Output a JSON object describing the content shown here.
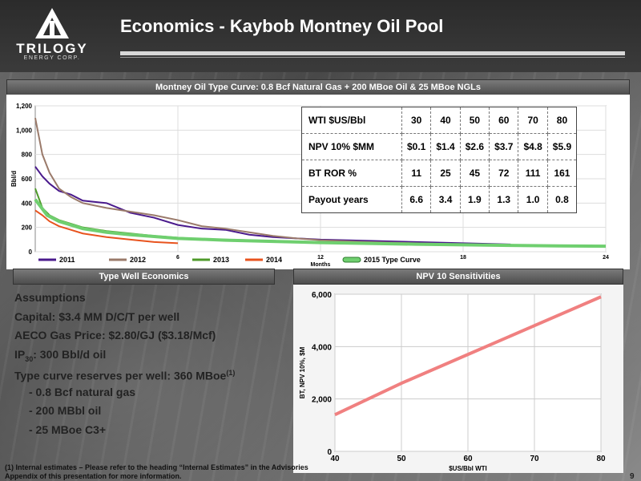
{
  "header": {
    "title": "Economics - Kaybob Montney Oil Pool",
    "logo_name": "TRILOGY",
    "logo_sub": "ENERGY CORP."
  },
  "type_curve_panel": {
    "title": "Montney Oil Type Curve: 0.8 Bcf Natural Gas + 200 MBoe Oil & 25 MBoe NGLs"
  },
  "chart_data": [
    {
      "type": "line",
      "ylabel": "Bbl/d",
      "xlabel": "Months",
      "xlim": [
        0,
        24
      ],
      "ylim": [
        0,
        1200
      ],
      "y_ticks": [
        "0",
        "200",
        "400",
        "600",
        "800",
        "1,000",
        "1,200"
      ],
      "x_ticks": [
        "6",
        "12",
        "18",
        "24"
      ],
      "legend_position": "bottom",
      "series": [
        {
          "name": "2011",
          "color": "#4a1a8c",
          "x": [
            0,
            0.3,
            0.6,
            1,
            1.5,
            2,
            3,
            4,
            5,
            6,
            7,
            8,
            9,
            10,
            11,
            12,
            14,
            16,
            18,
            20
          ],
          "y": [
            700,
            620,
            560,
            500,
            470,
            420,
            400,
            320,
            280,
            220,
            190,
            180,
            140,
            120,
            110,
            100,
            90,
            80,
            70,
            60
          ]
        },
        {
          "name": "2012",
          "color": "#9a7a6a",
          "x": [
            0,
            0.3,
            0.6,
            1,
            1.5,
            2,
            3,
            4,
            5,
            6,
            7,
            8,
            9,
            10,
            11,
            12,
            14,
            16,
            18
          ],
          "y": [
            1100,
            800,
            650,
            520,
            450,
            400,
            360,
            330,
            300,
            260,
            210,
            190,
            160,
            130,
            110,
            95,
            80,
            70,
            60
          ]
        },
        {
          "name": "2013",
          "color": "#4e9a2a",
          "x": [
            0,
            0.3,
            0.6,
            1,
            1.5,
            2,
            3,
            4,
            5,
            6,
            7,
            8,
            9,
            10,
            11,
            12,
            14,
            16,
            18,
            20,
            22,
            24
          ],
          "y": [
            520,
            360,
            300,
            260,
            230,
            200,
            170,
            150,
            130,
            115,
            105,
            100,
            95,
            90,
            85,
            80,
            70,
            62,
            55,
            50,
            45,
            42
          ]
        },
        {
          "name": "2014",
          "color": "#e8531e",
          "x": [
            0,
            0.3,
            0.6,
            1,
            1.5,
            2,
            3,
            4,
            5,
            6
          ],
          "y": [
            340,
            300,
            250,
            210,
            180,
            150,
            120,
            100,
            80,
            70
          ]
        },
        {
          "name": "2015 Type Curve",
          "color": "#6fcf6f",
          "x": [
            0,
            0.5,
            1,
            2,
            3,
            4,
            5,
            6,
            8,
            10,
            12,
            14,
            16,
            18,
            20,
            22,
            24
          ],
          "y": [
            430,
            300,
            250,
            190,
            160,
            140,
            125,
            110,
            95,
            85,
            75,
            68,
            62,
            57,
            52,
            48,
            45
          ]
        }
      ]
    },
    {
      "type": "line",
      "title": "NPV 10 Sensitivities",
      "xlabel": "$US/Bbl WTI",
      "ylabel": "BT, NPV 10%, $M",
      "xlim": [
        40,
        80
      ],
      "ylim": [
        0,
        6000
      ],
      "x_ticks": [
        "40",
        "50",
        "60",
        "70",
        "80"
      ],
      "y_ticks": [
        "0",
        "2,000",
        "4,000",
        "6,000"
      ],
      "series": [
        {
          "color": "#f08080",
          "x": [
            40,
            50,
            60,
            70,
            80
          ],
          "y": [
            1400,
            2600,
            3700,
            4800,
            5900
          ]
        }
      ]
    }
  ],
  "econ_table": {
    "headers": [
      "WTI $US/Bbl",
      "30",
      "40",
      "50",
      "60",
      "70",
      "80"
    ],
    "rows": [
      [
        "NPV 10% $MM",
        "$0.1",
        "$1.4",
        "$2.6",
        "$3.7",
        "$4.8",
        "$5.9"
      ],
      [
        "BT ROR %",
        "11",
        "25",
        "45",
        "72",
        "111",
        "161"
      ],
      [
        "Payout years",
        "6.6",
        "3.4",
        "1.9",
        "1.3",
        "1.0",
        "0.8"
      ]
    ]
  },
  "type_well": {
    "title": "Type Well Economics",
    "heading": "Assumptions",
    "capital": "Capital: $3.4 MM D/C/T per well",
    "aeco": "AECO Gas Price: $2.80/GJ ($3.18/Mcf)",
    "ip_prefix": "IP",
    "ip_sub": "30",
    "ip_suffix": ": 300 Bbl/d oil",
    "reserves": "Type curve reserves per well: 360 MBoe",
    "reserves_sup": "(1)",
    "items": [
      "- 0.8 Bcf natural gas",
      "- 200 MBbl oil",
      "- 25 MBoe C3+"
    ]
  },
  "npv_panel": {
    "title": "NPV 10 Sensitivities"
  },
  "footnote": "(1) Internal estimates – Please refer to the heading “Internal Estimates” in the Advisories Appendix of this presentation for more information.",
  "page_number": "9"
}
